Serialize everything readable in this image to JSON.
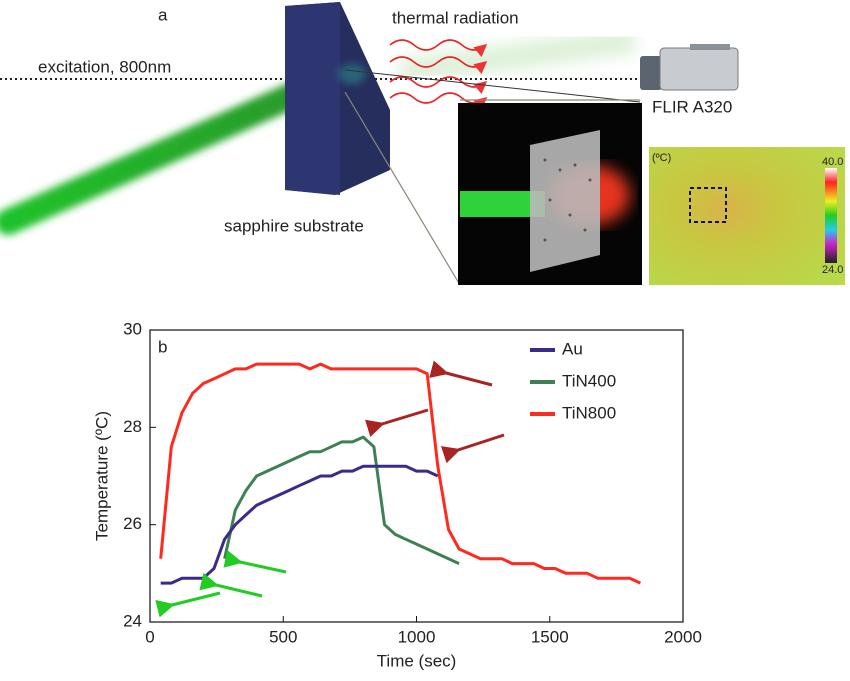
{
  "diagram": {
    "panel_label": "a",
    "thermal_label": "thermal radiation",
    "excitation_label": "excitation, 800nm",
    "camera_label": "FLIR A320",
    "substrate_label": "sapphire substrate",
    "colorbar_unit": "(ºC)",
    "colorbar_max": "40.0",
    "colorbar_min": "24.0"
  },
  "chart_data": {
    "type": "line",
    "panel_label": "b",
    "x_label": "Time (sec)",
    "y_label": "Temperature (ºC)",
    "xlim": [
      0,
      2000
    ],
    "xticks": [
      0,
      500,
      1000,
      1500,
      2000
    ],
    "ylim": [
      24,
      30
    ],
    "yticks": [
      24,
      26,
      28,
      30
    ],
    "x": [
      40,
      80,
      120,
      160,
      200,
      240,
      280,
      320,
      360,
      400,
      440,
      480,
      520,
      560,
      600,
      640,
      680,
      720,
      760,
      800,
      840,
      880,
      920,
      960,
      1000,
      1040,
      1080,
      1120,
      1160,
      1200,
      1240,
      1280,
      1320,
      1360,
      1400,
      1440,
      1480,
      1520,
      1560,
      1600,
      1640,
      1680,
      1720,
      1760,
      1800,
      1840
    ],
    "series": [
      {
        "name": "Au",
        "color": "#3b2a8c",
        "values": [
          24.8,
          24.8,
          24.9,
          24.9,
          24.9,
          25.1,
          25.7,
          26.0,
          26.2,
          26.4,
          26.5,
          26.6,
          26.7,
          26.8,
          26.9,
          27.0,
          27.0,
          27.1,
          27.1,
          27.2,
          27.2,
          27.2,
          27.2,
          27.2,
          27.1,
          27.1,
          27.0,
          null,
          null,
          null,
          null,
          null,
          null,
          null,
          null,
          null,
          null,
          null,
          null,
          null,
          null,
          null,
          null,
          null,
          null,
          null
        ]
      },
      {
        "name": "TiN400",
        "color": "#3f7f56",
        "values": [
          null,
          null,
          null,
          null,
          null,
          null,
          25.3,
          26.3,
          26.7,
          27.0,
          27.1,
          27.2,
          27.3,
          27.4,
          27.5,
          27.5,
          27.6,
          27.7,
          27.7,
          27.8,
          27.6,
          26.0,
          25.8,
          25.7,
          25.6,
          25.5,
          25.4,
          25.3,
          25.2,
          null,
          null,
          null,
          null,
          null,
          null,
          null,
          null,
          null,
          null,
          null,
          null,
          null,
          null,
          null,
          null,
          null
        ]
      },
      {
        "name": "TiN800",
        "color": "#ff2a1f",
        "values": [
          25.3,
          27.6,
          28.3,
          28.7,
          28.9,
          29.0,
          29.1,
          29.2,
          29.2,
          29.3,
          29.3,
          29.3,
          29.3,
          29.3,
          29.2,
          29.3,
          29.2,
          29.2,
          29.2,
          29.2,
          29.2,
          29.2,
          29.2,
          29.2,
          29.2,
          29.1,
          27.2,
          25.9,
          25.5,
          25.4,
          25.3,
          25.3,
          25.3,
          25.2,
          25.2,
          25.2,
          25.1,
          25.1,
          25.0,
          25.0,
          25.0,
          24.9,
          24.9,
          24.9,
          24.9,
          24.8
        ]
      }
    ]
  }
}
